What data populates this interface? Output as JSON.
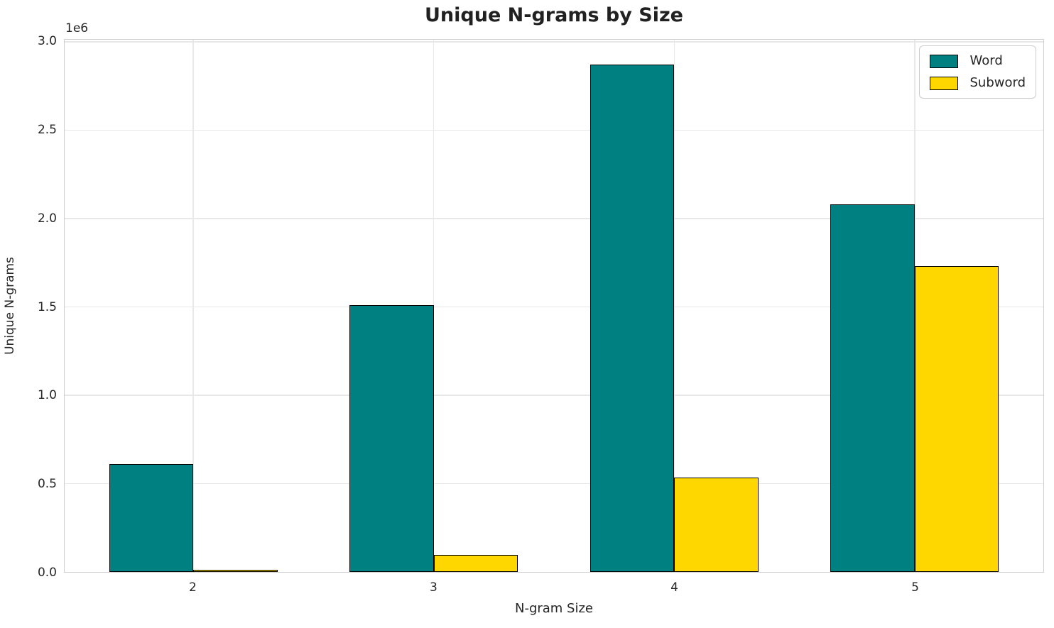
{
  "chart_data": {
    "type": "bar",
    "title": "Unique N-grams by Size",
    "xlabel": "N-gram Size",
    "ylabel": "Unique N-grams",
    "categories": [
      "2",
      "3",
      "4",
      "5"
    ],
    "series": [
      {
        "name": "Word",
        "color": "#008080",
        "values": [
          610000,
          1510000,
          2870000,
          2080000
        ]
      },
      {
        "name": "Subword",
        "color": "#FFD700",
        "values": [
          12000,
          95000,
          535000,
          1730000
        ]
      }
    ],
    "bar_edge_color": "#000000",
    "ylim": [
      0,
      3000000
    ],
    "yticks": [
      0,
      500000,
      1000000,
      1500000,
      2000000,
      2500000,
      3000000
    ],
    "ytick_labels": [
      "0.0",
      "0.5",
      "1.0",
      "1.5",
      "2.0",
      "2.5",
      "3.0"
    ],
    "y_offset_label": "1e6",
    "grid": true,
    "legend": {
      "position": "upper right",
      "entries": [
        "Word",
        "Subword"
      ]
    },
    "colors": {
      "grid": "#e8e8e8",
      "spine": "#d0d0d0",
      "text": "#262626",
      "background": "#ffffff"
    }
  }
}
